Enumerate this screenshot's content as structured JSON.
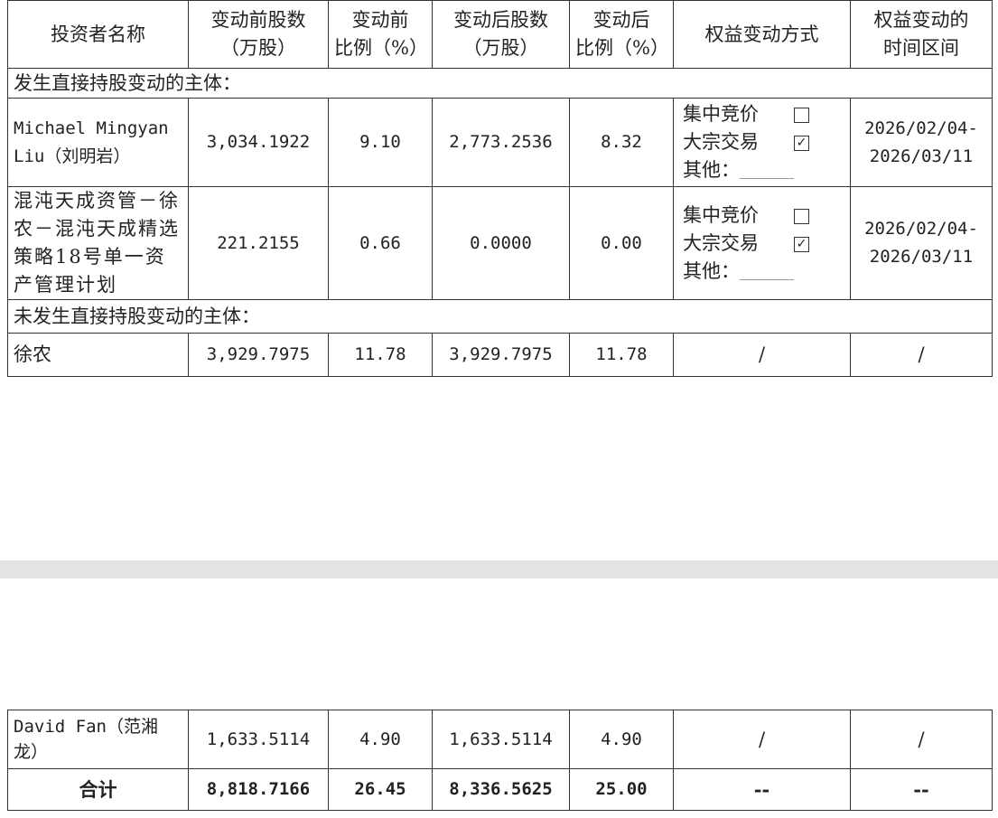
{
  "headers": [
    "投资者名称",
    "变动前股数（万股）",
    "变动前比例（%）",
    "变动后股数（万股）",
    "变动后比例（%）",
    "权益变动方式",
    "权益变动的时间区间"
  ],
  "header_lines": [
    [
      "投资者名称"
    ],
    [
      "变动前股数",
      "（万股）"
    ],
    [
      "变动前",
      "比例（%）"
    ],
    [
      "变动后股数",
      "（万股）"
    ],
    [
      "变动后",
      "比例（%）"
    ],
    [
      "权益变动方式"
    ],
    [
      "权益变动的",
      "时间区间"
    ]
  ],
  "section_direct": "发生直接持股变动的主体：",
  "section_indirect": "未发生直接持股变动的主体：",
  "method_labels": {
    "bidding": "集中竞价",
    "block": "大宗交易",
    "other": "其他："
  },
  "rows": [
    {
      "name": "Michael Mingyan Liu（刘明岩）",
      "before_shares": "3,034.1922",
      "before_pct": "9.10",
      "after_shares": "2,773.2536",
      "after_pct": "8.32",
      "bidding_checked": false,
      "block_checked": true,
      "period": "2026/02/04-2026/03/11"
    },
    {
      "name": "混沌天成资管－徐农－混沌天成精选策略18号单一资产管理计划",
      "before_shares": "221.2155",
      "before_pct": "0.66",
      "after_shares": "0.0000",
      "after_pct": "0.00",
      "bidding_checked": false,
      "block_checked": true,
      "period": "2026/02/04-2026/03/11"
    },
    {
      "name": "徐农",
      "before_shares": "3,929.7975",
      "before_pct": "11.78",
      "after_shares": "3,929.7975",
      "after_pct": "11.78",
      "method": "/",
      "period": "/"
    }
  ],
  "rows2": [
    {
      "name": "David Fan（范湘龙）",
      "before_shares": "1,633.5114",
      "before_pct": "4.90",
      "after_shares": "1,633.5114",
      "after_pct": "4.90",
      "method": "/",
      "period": "/"
    },
    {
      "name": "合计",
      "before_shares": "8,818.7166",
      "before_pct": "26.45",
      "after_shares": "8,336.5625",
      "after_pct": "25.00",
      "method": "--",
      "period": "--"
    }
  ],
  "check_glyph": "☑",
  "empty_glyph": ""
}
